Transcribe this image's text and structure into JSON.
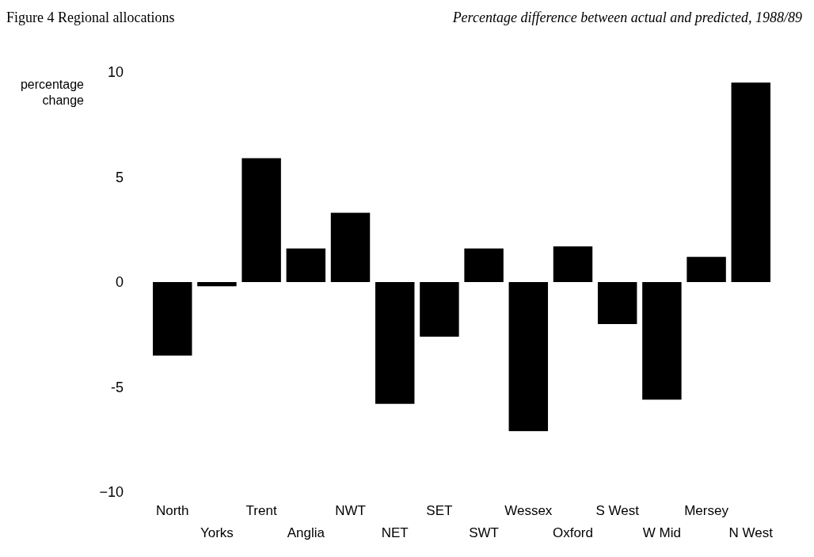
{
  "chart_data": {
    "type": "bar",
    "title": "Figure 4    Regional allocations",
    "subtitle": "Percentage difference between actual and predicted, 1988/89",
    "ylabel": "percentage change",
    "categories": [
      "North",
      "Yorks",
      "Trent",
      "Anglia",
      "NWT",
      "NET",
      "SET",
      "SWT",
      "Wessex",
      "Oxford",
      "S West",
      "W Mid",
      "Mersey",
      "N West"
    ],
    "values": [
      -3.5,
      -0.2,
      5.9,
      1.6,
      3.3,
      -5.8,
      -2.6,
      1.6,
      -7.1,
      1.7,
      -2.0,
      -5.6,
      1.2,
      9.5
    ],
    "color": "#000000",
    "ylim": [
      -10,
      10
    ],
    "yticks": [
      {
        "value": -10,
        "label": "−10"
      },
      {
        "value": -5,
        "label": "-5"
      },
      0,
      5,
      10
    ],
    "grid": false
  }
}
